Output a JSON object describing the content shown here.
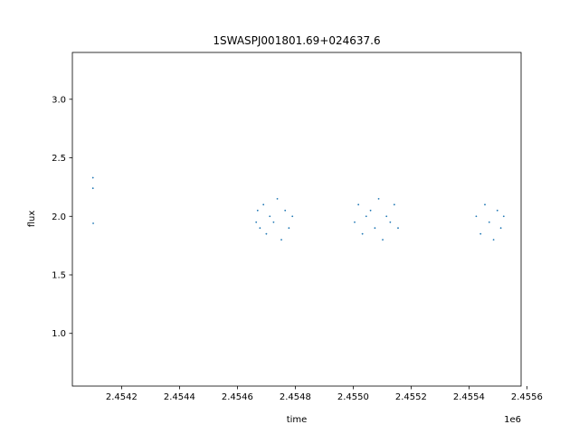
{
  "chart_data": {
    "type": "scatter",
    "title": "1SWASPJ001801.69+024637.6",
    "xlabel": "time",
    "ylabel": "flux",
    "x_offset_label": "1e6",
    "xlim": [
      2454030,
      2455580
    ],
    "ylim": [
      0.55,
      3.4
    ],
    "x_ticks": [
      2454200,
      2454400,
      2454600,
      2454800,
      2455000,
      2455200,
      2455400,
      2455600
    ],
    "x_tick_labels": [
      "2.4542",
      "2.4544",
      "2.4546",
      "2.4548",
      "2.4550",
      "2.4552",
      "2.4554",
      "2.4556"
    ],
    "y_ticks": [
      1.0,
      1.5,
      2.0,
      2.5,
      3.0
    ],
    "y_tick_labels": [
      "1.0",
      "1.5",
      "2.0",
      "2.5",
      "3.0"
    ],
    "grid": false,
    "marker_color": "#1f77b4",
    "series": [
      {
        "x": [
          2454101,
          2454101,
          2454102,
          2454665,
          2454670,
          2454678,
          2454690,
          2454700,
          2454712,
          2454725,
          2454738,
          2454752,
          2454765,
          2454778,
          2454790,
          2455005,
          2455018,
          2455032,
          2455045,
          2455060,
          2455075,
          2455088,
          2455102,
          2455115,
          2455128,
          2455142,
          2455155,
          2455425,
          2455440,
          2455455,
          2455470,
          2455485,
          2455498,
          2455510,
          2455520
        ],
        "y": [
          2.33,
          2.24,
          1.94,
          1.95,
          2.05,
          1.9,
          2.1,
          1.85,
          2.0,
          1.95,
          2.15,
          1.8,
          2.05,
          1.9,
          2.0,
          1.95,
          2.1,
          1.85,
          2.0,
          2.05,
          1.9,
          2.15,
          1.8,
          2.0,
          1.95,
          2.1,
          1.9,
          2.0,
          1.85,
          2.1,
          1.95,
          1.8,
          2.05,
          1.9,
          2.0
        ]
      }
    ]
  }
}
